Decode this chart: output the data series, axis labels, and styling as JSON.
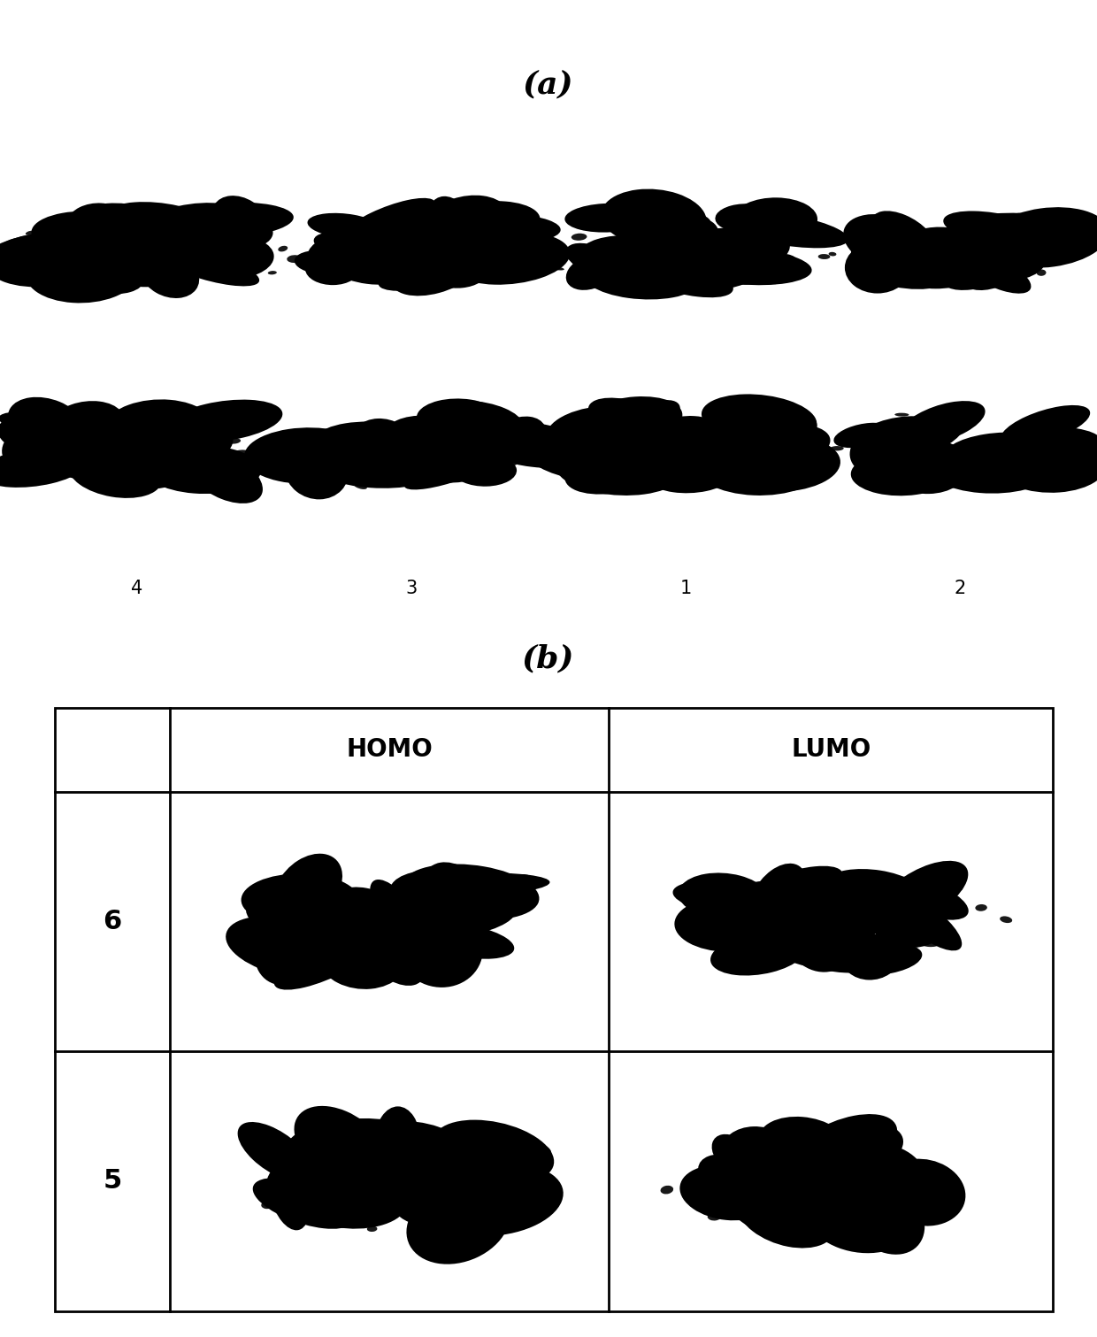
{
  "title_a": "(a)",
  "title_b": "(b)",
  "label_homo": "HOMO",
  "label_lumo": "LUMO",
  "part_a_col_labels": [
    "4",
    "3",
    "1",
    "2"
  ],
  "part_b_row_labels": [
    "6",
    "5"
  ],
  "part_b_col_labels": [
    "HOMO",
    "LUMO"
  ],
  "bg_color": "#ffffff",
  "text_color": "#000000",
  "blob_color": "#000000",
  "fig_width": 12.4,
  "fig_height": 15.11
}
